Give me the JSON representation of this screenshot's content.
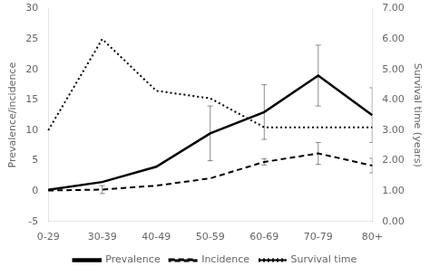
{
  "chart_data": {
    "type": "line",
    "categories": [
      "0-29",
      "30-39",
      "40-49",
      "50-59",
      "60-69",
      "70-79",
      "80+"
    ],
    "series": [
      {
        "name": "Prevalence",
        "color": "#000000",
        "line_style": "solid",
        "marker": "none",
        "values": [
          0.2,
          1.5,
          4.0,
          9.5,
          13.0,
          19.0,
          12.5
        ],
        "err_lower": [
          0.0,
          0.0,
          0.0,
          4.5,
          4.5,
          5.0,
          4.5
        ],
        "err_upper": [
          0.0,
          0.0,
          0.0,
          4.5,
          4.5,
          5.0,
          4.5
        ]
      },
      {
        "name": "Incidence",
        "color": "#000000",
        "line_style": "dashed",
        "marker": "none",
        "values": [
          0.1,
          0.25,
          0.9,
          2.1,
          4.8,
          6.2,
          4.2
        ],
        "err_lower": [
          0.0,
          0.65,
          0.0,
          0.0,
          0.5,
          1.8,
          1.2
        ],
        "err_upper": [
          0.0,
          0.65,
          0.0,
          0.0,
          0.5,
          1.8,
          1.2
        ]
      },
      {
        "name": "Survival time",
        "color": "#000000",
        "line_style": "dotted",
        "marker": "none",
        "axis": "y2",
        "values": [
          3.0,
          6.0,
          4.3,
          4.05,
          3.1,
          3.1,
          3.1
        ]
      }
    ],
    "ylabel": "Prevalence/incidence",
    "y2label": "Survival time (years)",
    "ylim": [
      -5,
      30
    ],
    "yticks": [
      -5,
      0,
      5,
      10,
      15,
      20,
      25,
      30
    ],
    "y2lim": [
      0.0,
      7.0
    ],
    "y2ticks": [
      {
        "value": 0.0,
        "label": "0.00"
      },
      {
        "value": 1.0,
        "label": "1.00"
      },
      {
        "value": 2.0,
        "label": "2.00"
      },
      {
        "value": 3.0,
        "label": "3.00"
      },
      {
        "value": 4.0,
        "label": "4.00"
      },
      {
        "value": 5.0,
        "label": "5.00"
      },
      {
        "value": 6.0,
        "label": "6.00"
      },
      {
        "value": 7.0,
        "label": "7.00"
      }
    ],
    "grid": false,
    "legend": "bottom"
  }
}
